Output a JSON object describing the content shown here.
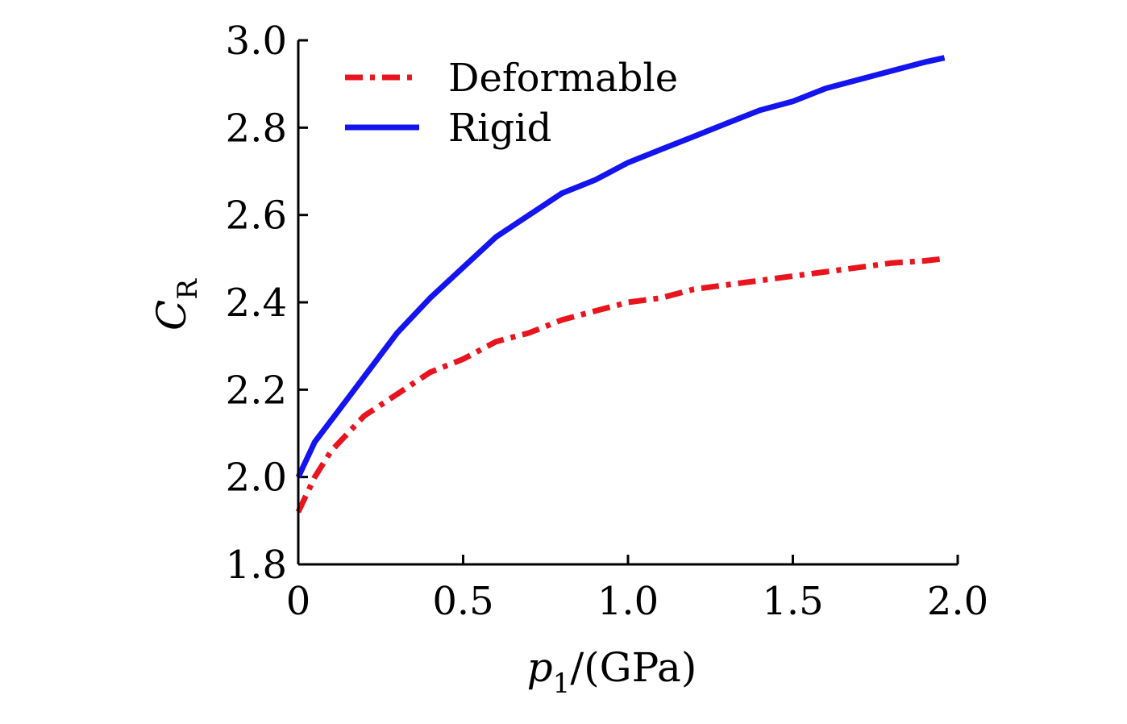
{
  "chart_data": {
    "type": "line",
    "xlabel_var": "p",
    "xlabel_sub": "1",
    "xlabel_unit": "/(GPa)",
    "ylabel_var": "C",
    "ylabel_sub": "R",
    "xlim": [
      0,
      2.0
    ],
    "ylim": [
      1.8,
      3.0
    ],
    "xticks": [
      0,
      0.5,
      1.0,
      1.5,
      2.0
    ],
    "xtick_labels": [
      "0",
      "0.5",
      "1.0",
      "1.5",
      "2.0"
    ],
    "yticks": [
      1.8,
      2.0,
      2.2,
      2.4,
      2.6,
      2.8,
      3.0
    ],
    "ytick_labels": [
      "1.8",
      "2.0",
      "2.2",
      "2.4",
      "2.6",
      "2.8",
      "3.0"
    ],
    "grid": false,
    "legend_position": "top-left",
    "series": [
      {
        "name": "Deformable",
        "color": "#e8141e",
        "style": "dash-dot",
        "x": [
          0,
          0.05,
          0.1,
          0.15,
          0.2,
          0.3,
          0.4,
          0.5,
          0.6,
          0.7,
          0.8,
          0.9,
          1.0,
          1.1,
          1.2,
          1.3,
          1.4,
          1.5,
          1.6,
          1.7,
          1.8,
          1.9,
          1.96
        ],
        "y": [
          1.92,
          2.0,
          2.06,
          2.1,
          2.14,
          2.19,
          2.24,
          2.27,
          2.31,
          2.33,
          2.36,
          2.38,
          2.4,
          2.41,
          2.43,
          2.44,
          2.45,
          2.46,
          2.47,
          2.48,
          2.49,
          2.495,
          2.5
        ]
      },
      {
        "name": "Rigid",
        "color": "#1414f0",
        "style": "solid",
        "x": [
          0,
          0.05,
          0.1,
          0.15,
          0.2,
          0.3,
          0.4,
          0.5,
          0.6,
          0.7,
          0.8,
          0.9,
          1.0,
          1.1,
          1.2,
          1.3,
          1.4,
          1.5,
          1.6,
          1.7,
          1.8,
          1.9,
          1.96
        ],
        "y": [
          2.0,
          2.08,
          2.13,
          2.18,
          2.23,
          2.33,
          2.41,
          2.48,
          2.55,
          2.6,
          2.65,
          2.68,
          2.72,
          2.75,
          2.78,
          2.81,
          2.84,
          2.86,
          2.89,
          2.91,
          2.93,
          2.95,
          2.96
        ]
      }
    ]
  }
}
